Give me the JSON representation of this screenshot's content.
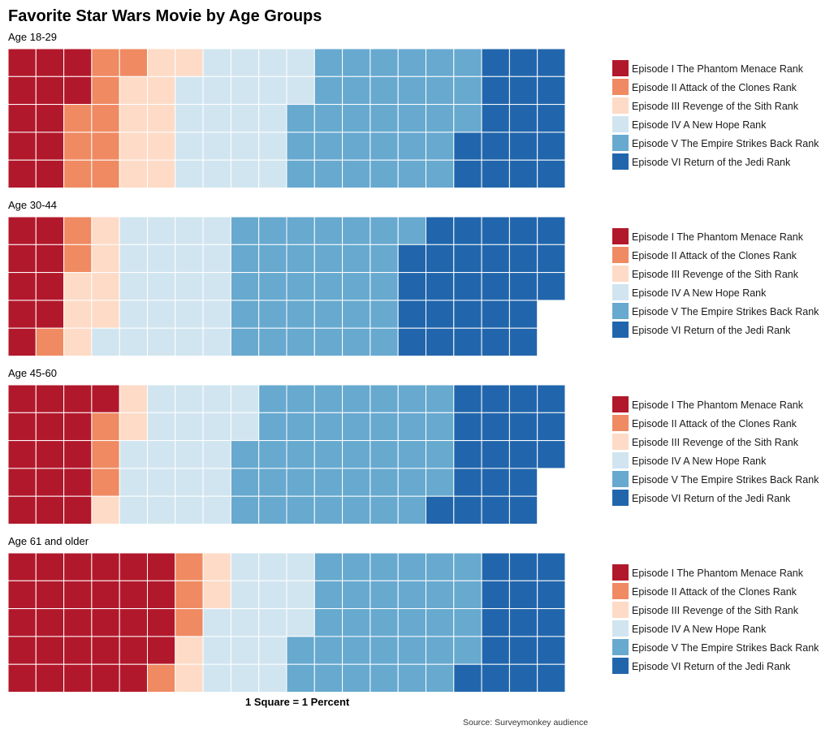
{
  "title": "Favorite Star Wars Movie by Age Groups",
  "scale_note": "1 Square = 1 Percent",
  "source_note": "Source: Surveymonkey audience",
  "colors": [
    "#b2182b",
    "#ef8a62",
    "#fddbc7",
    "#d1e5f0",
    "#67a9cf",
    "#2166ac"
  ],
  "chart_data": {
    "type": "waffle",
    "unit": "1 Square = 1 Percent",
    "rows": 5,
    "categories": [
      "Episode I  The Phantom Menace Rank",
      "Episode II  Attack of the Clones Rank",
      "Episode III  Revenge of the Sith Rank",
      "Episode IV  A New Hope Rank",
      "Episode V The Empire Strikes Back Rank",
      "Episode VI Return of the Jedi Rank"
    ],
    "legend_position": "right",
    "panels": [
      {
        "label": "Age 18-29",
        "values": [
          12,
          9,
          10,
          21,
          31,
          17
        ]
      },
      {
        "label": "Age 30-44",
        "values": [
          9,
          3,
          7,
          21,
          31,
          27
        ]
      },
      {
        "label": "Age 45-60",
        "values": [
          16,
          3,
          3,
          20,
          37,
          19
        ]
      },
      {
        "label": "Age 61 and older",
        "values": [
          29,
          4,
          4,
          16,
          31,
          16
        ]
      }
    ]
  }
}
